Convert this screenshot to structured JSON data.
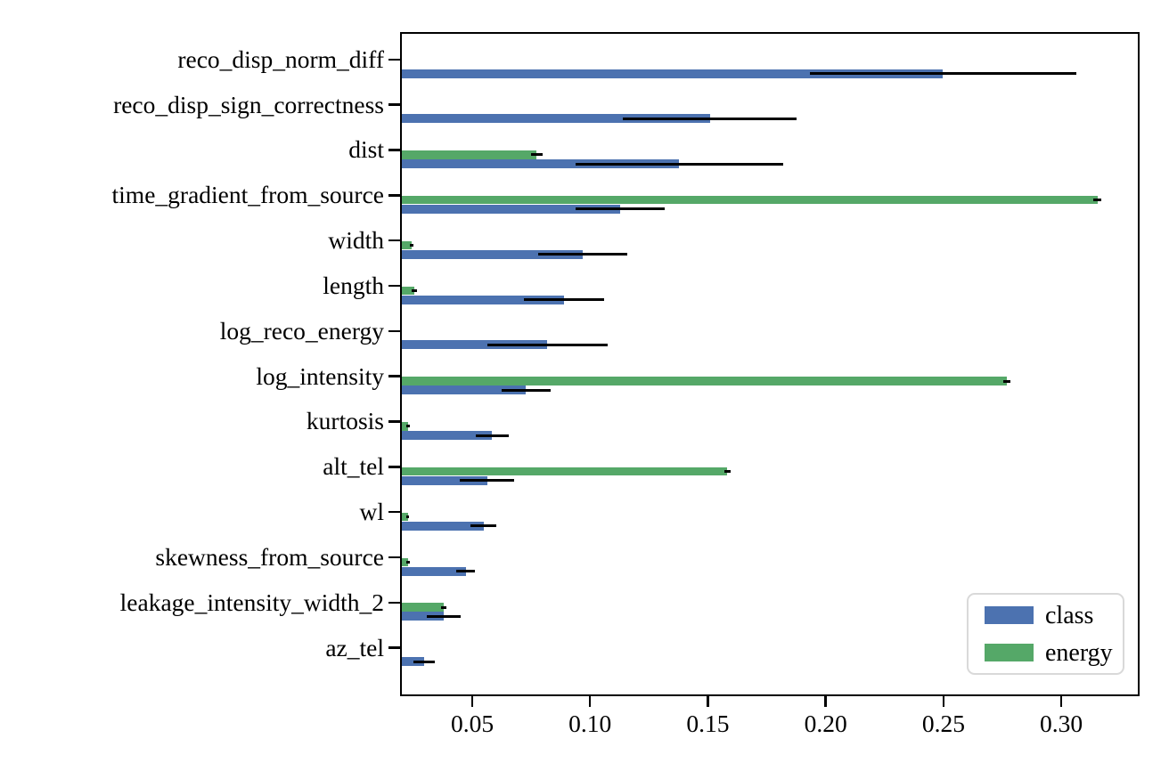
{
  "chart_data": {
    "type": "bar",
    "orientation": "horizontal",
    "title": "",
    "xlabel": "",
    "ylabel": "",
    "grid": false,
    "categories": [
      "reco_disp_norm_diff",
      "reco_disp_sign_correctness",
      "dist",
      "time_gradient_from_source",
      "width",
      "length",
      "log_reco_energy",
      "log_intensity",
      "kurtosis",
      "alt_tel",
      "wl",
      "skewness_from_source",
      "leakage_intensity_width_2",
      "az_tel"
    ],
    "series": [
      {
        "name": "class",
        "color": "#4C72B0",
        "values": [
          0.25,
          0.151,
          0.138,
          0.113,
          0.097,
          0.089,
          0.082,
          0.073,
          0.0585,
          0.0565,
          0.055,
          0.0475,
          0.038,
          0.0297
        ],
        "errors": [
          0.0565,
          0.037,
          0.044,
          0.019,
          0.019,
          0.017,
          0.0255,
          0.0105,
          0.007,
          0.0115,
          0.0055,
          0.004,
          0.0073,
          0.0045
        ]
      },
      {
        "name": "energy",
        "color": "#55A868",
        "values": [
          null,
          null,
          0.0775,
          0.3155,
          0.0245,
          0.0255,
          null,
          0.277,
          0.023,
          0.1585,
          0.0228,
          0.023,
          0.038,
          null
        ],
        "errors": [
          null,
          null,
          0.0025,
          0.0018,
          0.0008,
          0.0012,
          null,
          0.0015,
          0.0008,
          0.0012,
          0.0005,
          0.0008,
          0.0012,
          null
        ]
      }
    ],
    "x_ticks": [
      0.05,
      0.1,
      0.15,
      0.2,
      0.25,
      0.3
    ],
    "x_tick_labels": [
      "0.05",
      "0.10",
      "0.15",
      "0.20",
      "0.25",
      "0.30"
    ],
    "xlim": [
      0.0203,
      0.3323
    ],
    "error_color": "#000000",
    "legend": {
      "position": "lower right",
      "entries": [
        "class",
        "energy"
      ]
    }
  }
}
